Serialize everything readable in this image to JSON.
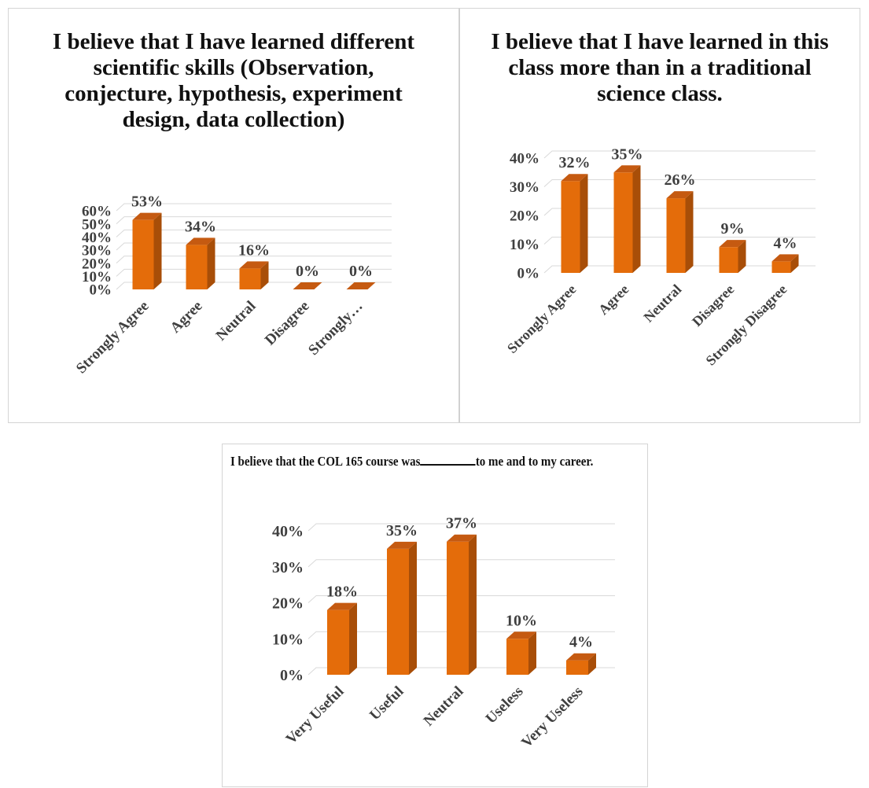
{
  "colors": {
    "bar_front": "#e46c0a",
    "bar_side": "#a84e08",
    "bar_top": "#c55a11",
    "grid": "#d9d9d9",
    "axis_text": "#3f3f3f"
  },
  "chart_data": [
    {
      "type": "bar",
      "title": "I believe that I have learned different scientific skills (Observation, conjecture, hypothesis, experiment design, data collection)",
      "categories": [
        "Strongly Agree",
        "Agree",
        "Neutral",
        "Disagree",
        "Strongly…"
      ],
      "values": [
        53,
        34,
        16,
        0,
        0
      ],
      "data_labels": [
        "53%",
        "34%",
        "16%",
        "0%",
        "0%"
      ],
      "yticks": [
        "0%",
        "10%",
        "20%",
        "30%",
        "40%",
        "50%",
        "60%"
      ],
      "ylim": [
        0,
        60
      ],
      "grid": true
    },
    {
      "type": "bar",
      "title": "I believe that I have learned in this class more than in a traditional science class.",
      "categories": [
        "Strongly Agree",
        "Agree",
        "Neutral",
        "Disagree",
        "Strongly Disagree"
      ],
      "values": [
        32,
        35,
        26,
        9,
        4
      ],
      "data_labels": [
        "32%",
        "35%",
        "26%",
        "9%",
        "4%"
      ],
      "yticks": [
        "0%",
        "10%",
        "20%",
        "30%",
        "40%"
      ],
      "ylim": [
        0,
        40
      ],
      "grid": true
    },
    {
      "type": "bar",
      "title_before": "I believe that the COL 165 course was",
      "title_after": "to me and to my career.",
      "categories": [
        "Very Useful",
        "Useful",
        "Neutral",
        "Useless",
        "Very Useless"
      ],
      "values": [
        18,
        35,
        37,
        10,
        4
      ],
      "data_labels": [
        "18%",
        "35%",
        "37%",
        "10%",
        "4%"
      ],
      "yticks": [
        "0%",
        "10%",
        "20%",
        "30%",
        "40%"
      ],
      "ylim": [
        0,
        40
      ],
      "grid": true
    }
  ]
}
